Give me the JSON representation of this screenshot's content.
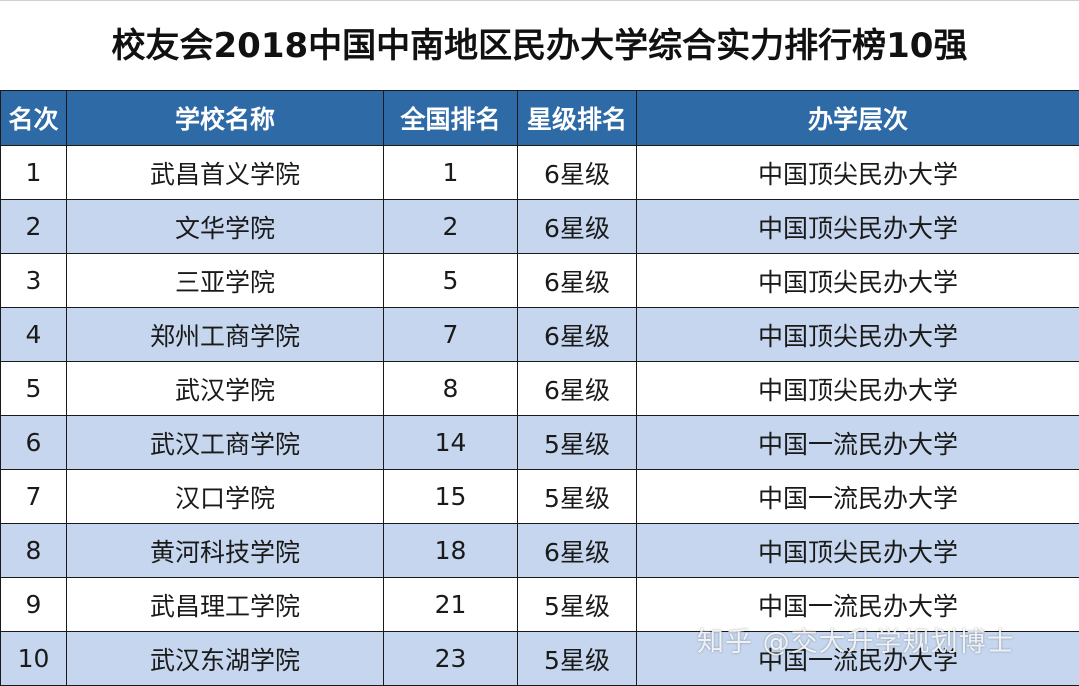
{
  "title": "校友会2018中国中南地区民办大学综合实力排行榜10强",
  "headers": [
    "名次",
    "学校名称",
    "全国排名",
    "星级排名",
    "办学层次"
  ],
  "rows": [
    [
      "1",
      "武昌首义学院",
      "1",
      "6星级",
      "中国顶尖民办大学"
    ],
    [
      "2",
      "文华学院",
      "2",
      "6星级",
      "中国顶尖民办大学"
    ],
    [
      "3",
      "三亚学院",
      "5",
      "6星级",
      "中国顶尖民办大学"
    ],
    [
      "4",
      "郑州工商学院",
      "7",
      "6星级",
      "中国顶尖民办大学"
    ],
    [
      "5",
      "武汉学院",
      "8",
      "6星级",
      "中国顶尖民办大学"
    ],
    [
      "6",
      "武汉工商学院",
      "14",
      "5星级",
      "中国一流民办大学"
    ],
    [
      "7",
      "汉口学院",
      "15",
      "5星级",
      "中国一流民办大学"
    ],
    [
      "8",
      "黄河科技学院",
      "18",
      "6星级",
      "中国顶尖民办大学"
    ],
    [
      "9",
      "武昌理工学院",
      "21",
      "5星级",
      "中国一流民办大学"
    ],
    [
      "10",
      "武汉东湖学院",
      "23",
      "5星级",
      "中国一流民办大学"
    ]
  ],
  "watermark": "知乎 @交大升学规划博士",
  "colors": {
    "header_bg": "#2e6aa6",
    "header_text": "#ffffff",
    "stripe_bg": "#c5d6ee",
    "row_bg": "#ffffff",
    "border": "#1a1a1a"
  }
}
